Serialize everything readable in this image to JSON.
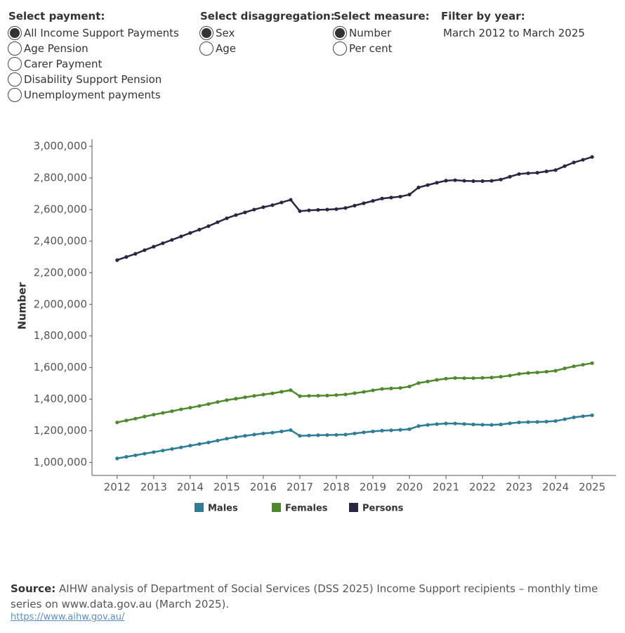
{
  "controls": [
    {
      "title": "Select payment:",
      "options": [
        "All Income Support Payments",
        "Age Pension",
        "Carer Payment",
        "Disability Support Pension",
        "Unemployment payments"
      ],
      "selected": 0
    },
    {
      "title": "Select disaggregation:",
      "options": [
        "Sex",
        "Age"
      ],
      "selected": 0
    },
    {
      "title": "Select measure:",
      "options": [
        "Number",
        "Per cent"
      ],
      "selected": 0
    }
  ],
  "filter": {
    "title": "Filter by year:",
    "value": "March 2012 to March 2025"
  },
  "source": {
    "label": "Source:",
    "text": "AIHW analysis of Department of Social Services (DSS 2025) Income Support recipients – monthly time series on www.data.gov.au (March 2025).",
    "link": "https://www.aihw.gov.au/"
  },
  "chart_data": {
    "type": "line",
    "y_label": "Number",
    "x": [
      2012,
      2012.25,
      2012.5,
      2012.75,
      2013,
      2013.25,
      2013.5,
      2013.75,
      2014,
      2014.25,
      2014.5,
      2014.75,
      2015,
      2015.25,
      2015.5,
      2015.75,
      2016,
      2016.25,
      2016.5,
      2016.75,
      2017,
      2017.25,
      2017.5,
      2017.75,
      2018,
      2018.25,
      2018.5,
      2018.75,
      2019,
      2019.25,
      2019.5,
      2019.75,
      2020,
      2020.25,
      2020.5,
      2020.75,
      2021,
      2021.25,
      2021.5,
      2021.75,
      2022,
      2022.25,
      2022.5,
      2022.75,
      2023,
      2023.25,
      2023.5,
      2023.75,
      2024,
      2024.25,
      2024.5,
      2024.75,
      2025
    ],
    "series": [
      {
        "name": "Males",
        "color": "#2e7d96",
        "values": [
          1025000,
          1035000,
          1045000,
          1055000,
          1065000,
          1075000,
          1085000,
          1095000,
          1106000,
          1116000,
          1126000,
          1138000,
          1150000,
          1160000,
          1168000,
          1176000,
          1183000,
          1188000,
          1196000,
          1204000,
          1168000,
          1170000,
          1172000,
          1173000,
          1174000,
          1176000,
          1183000,
          1190000,
          1196000,
          1201000,
          1203000,
          1206000,
          1210000,
          1230000,
          1237000,
          1242000,
          1246000,
          1246000,
          1243000,
          1240000,
          1238000,
          1237000,
          1240000,
          1247000,
          1253000,
          1255000,
          1256000,
          1258000,
          1262000,
          1273000,
          1285000,
          1292000,
          1298000
        ]
      },
      {
        "name": "Females",
        "color": "#4e8a2c",
        "values": [
          1253000,
          1265000,
          1277000,
          1290000,
          1302000,
          1313000,
          1324000,
          1336000,
          1346000,
          1357000,
          1369000,
          1382000,
          1394000,
          1403000,
          1412000,
          1421000,
          1429000,
          1437000,
          1447000,
          1457000,
          1419000,
          1421000,
          1422000,
          1423000,
          1426000,
          1430000,
          1438000,
          1446000,
          1456000,
          1465000,
          1468000,
          1471000,
          1480000,
          1502000,
          1512000,
          1522000,
          1530000,
          1534000,
          1533000,
          1533000,
          1535000,
          1537000,
          1542000,
          1549000,
          1560000,
          1566000,
          1569000,
          1574000,
          1580000,
          1595000,
          1608000,
          1618000,
          1628000
        ]
      },
      {
        "name": "Persons",
        "color": "#2a2643",
        "values": [
          2280000,
          2300000,
          2320000,
          2343000,
          2365000,
          2387000,
          2408000,
          2430000,
          2452000,
          2473000,
          2495000,
          2520000,
          2545000,
          2565000,
          2582000,
          2600000,
          2615000,
          2628000,
          2645000,
          2662000,
          2590000,
          2595000,
          2598000,
          2600000,
          2603000,
          2610000,
          2625000,
          2640000,
          2655000,
          2670000,
          2676000,
          2682000,
          2695000,
          2740000,
          2755000,
          2770000,
          2783000,
          2786000,
          2782000,
          2780000,
          2780000,
          2782000,
          2790000,
          2808000,
          2825000,
          2830000,
          2833000,
          2842000,
          2850000,
          2875000,
          2898000,
          2915000,
          2933000
        ]
      }
    ],
    "xlim": [
      2011.35,
      2025.65
    ],
    "xticks": [
      2012,
      2013,
      2014,
      2015,
      2016,
      2017,
      2018,
      2019,
      2020,
      2021,
      2022,
      2023,
      2024,
      2025
    ],
    "ylim": [
      935000,
      3045000
    ],
    "yticks": [
      {
        "value": 1000000,
        "label": "1,000,000"
      },
      {
        "value": 1200000,
        "label": "1,200,000"
      },
      {
        "value": 1400000,
        "label": "1,400,000"
      },
      {
        "value": 1600000,
        "label": "1,600,000"
      },
      {
        "value": 1800000,
        "label": "1,800,000"
      },
      {
        "value": 2000000,
        "label": "2,000,000"
      },
      {
        "value": 2200000,
        "label": "2,200,000"
      },
      {
        "value": 2400000,
        "label": "2,400,000"
      },
      {
        "value": 2600000,
        "label": "2,600,000"
      },
      {
        "value": 2800000,
        "label": "2,800,000"
      },
      {
        "value": 3000000,
        "label": "3,000,000"
      }
    ],
    "grid": false
  }
}
